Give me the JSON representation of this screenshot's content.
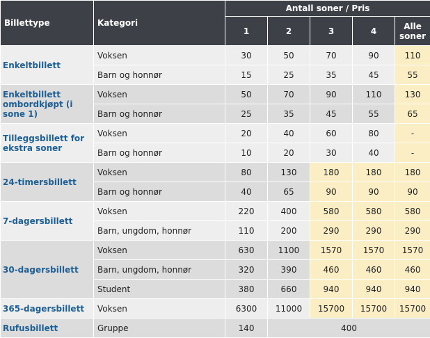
{
  "header": {
    "billettype": "Billettype",
    "kategori": "Kategori",
    "antall_soner": "Antall soner / Pris",
    "zones": [
      "1",
      "2",
      "3",
      "4"
    ],
    "alle_soner_1": "Alle",
    "alle_soner_2": "soner"
  },
  "groups": [
    {
      "type": "Enkeltbillett",
      "rows": [
        {
          "kategori": "Voksen",
          "z1": "30",
          "z2": "50",
          "z3": "70",
          "z4": "90",
          "alle": "110"
        },
        {
          "kategori": "Barn og honnør",
          "z1": "15",
          "z2": "25",
          "z3": "35",
          "z4": "45",
          "alle": "55"
        }
      ]
    },
    {
      "type": "Enkeltbillett ombordkjøpt (i sone 1)",
      "rows": [
        {
          "kategori": "Voksen",
          "z1": "50",
          "z2": "70",
          "z3": "90",
          "z4": "110",
          "alle": "130"
        },
        {
          "kategori": "Barn og honnør",
          "z1": "25",
          "z2": "35",
          "z3": "45",
          "z4": "55",
          "alle": "65"
        }
      ]
    },
    {
      "type": "Tilleggsbillett for ekstra soner",
      "rows": [
        {
          "kategori": "Voksen",
          "z1": "20",
          "z2": "40",
          "z3": "60",
          "z4": "80",
          "alle": "-"
        },
        {
          "kategori": "Barn og honnør",
          "z1": "10",
          "z2": "20",
          "z3": "30",
          "z4": "40",
          "alle": "-"
        }
      ]
    },
    {
      "type": "24-timersbillett",
      "rows": [
        {
          "kategori": "Voksen",
          "z1": "80",
          "z2": "130",
          "z3": "180",
          "z4": "180",
          "alle": "180"
        },
        {
          "kategori": "Barn og honnør",
          "z1": "40",
          "z2": "65",
          "z3": "90",
          "z4": "90",
          "alle": "90"
        }
      ]
    },
    {
      "type": "7-dagersbillett",
      "rows": [
        {
          "kategori": "Voksen",
          "z1": "220",
          "z2": "400",
          "z3": "580",
          "z4": "580",
          "alle": "580"
        },
        {
          "kategori": "Barn, ungdom, honnør",
          "z1": "110",
          "z2": "200",
          "z3": "290",
          "z4": "290",
          "alle": "290"
        }
      ]
    },
    {
      "type": "30-dagersbillett",
      "rows": [
        {
          "kategori": "Voksen",
          "z1": "630",
          "z2": "1100",
          "z3": "1570",
          "z4": "1570",
          "alle": "1570"
        },
        {
          "kategori": "Barn, ungdom, honnør",
          "z1": "320",
          "z2": "390",
          "z3": "460",
          "z4": "460",
          "alle": "460"
        },
        {
          "kategori": "Student",
          "z1": "380",
          "z2": "660",
          "z3": "940",
          "z4": "940",
          "alle": "940"
        }
      ]
    },
    {
      "type": "365-dagersbillett",
      "rows": [
        {
          "kategori": "Voksen",
          "z1": "6300",
          "z2": "11000",
          "z3": "15700",
          "z4": "15700",
          "alle": "15700"
        }
      ]
    },
    {
      "type": "Rufusbillett",
      "rows": [
        {
          "kategori": "Gruppe",
          "z1": "140",
          "rest": "400"
        }
      ]
    }
  ],
  "colors": {
    "header_bg": "#3d4047",
    "row_light": "#eeeeee",
    "row_dark": "#dcdcdc",
    "highlight": "#fbeec4",
    "ticket_type_text": "#1e5f96"
  }
}
